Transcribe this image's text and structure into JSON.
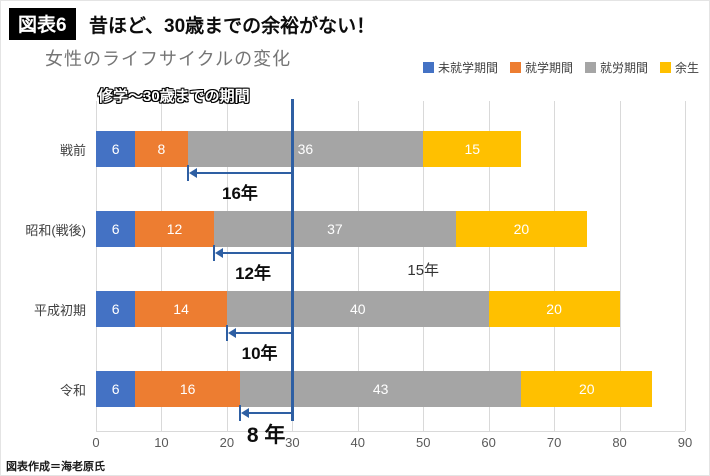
{
  "header": {
    "badge": "図表6",
    "headline": "昔ほど、30歳までの余裕がない！"
  },
  "chart_data": {
    "type": "bar",
    "orientation": "horizontal",
    "stacked": true,
    "title": "女性のライフサイクルの変化",
    "categories": [
      "戦前",
      "昭和(戦後)",
      "平成初期",
      "令和"
    ],
    "series": [
      {
        "name": "未就学期間",
        "color": "#4472C4",
        "values": [
          6,
          6,
          6,
          6
        ]
      },
      {
        "name": "就学期間",
        "color": "#ED7D31",
        "values": [
          8,
          12,
          14,
          16
        ]
      },
      {
        "name": "就労期間",
        "color": "#A5A5A5",
        "values": [
          36,
          37,
          40,
          43
        ]
      },
      {
        "name": "余生",
        "color": "#FFC000",
        "values": [
          15,
          20,
          20,
          20
        ]
      }
    ],
    "xlim": [
      0,
      90
    ],
    "x_ticks": [
      0,
      10,
      20,
      30,
      40,
      50,
      60,
      70,
      80,
      90
    ],
    "grid": true,
    "legend_position": "top-right",
    "reference_line": {
      "x": 30,
      "label": "修学〜30歳までの期間",
      "color": "#2E5FA3"
    },
    "annotations": [
      {
        "type": "arrow",
        "label": "16年",
        "from": 14,
        "to": 30,
        "row": 0
      },
      {
        "type": "arrow",
        "label": "12年",
        "from": 18,
        "to": 30,
        "row": 1
      },
      {
        "type": "text",
        "label": "15年",
        "x": 50,
        "row": 1
      },
      {
        "type": "arrow",
        "label": "10年",
        "from": 20,
        "to": 30,
        "row": 2
      },
      {
        "type": "arrow",
        "label": "8 年",
        "from": 22,
        "to": 30,
        "row": 3
      }
    ]
  },
  "footer": {
    "credit": "図表作成＝海老原氏"
  }
}
